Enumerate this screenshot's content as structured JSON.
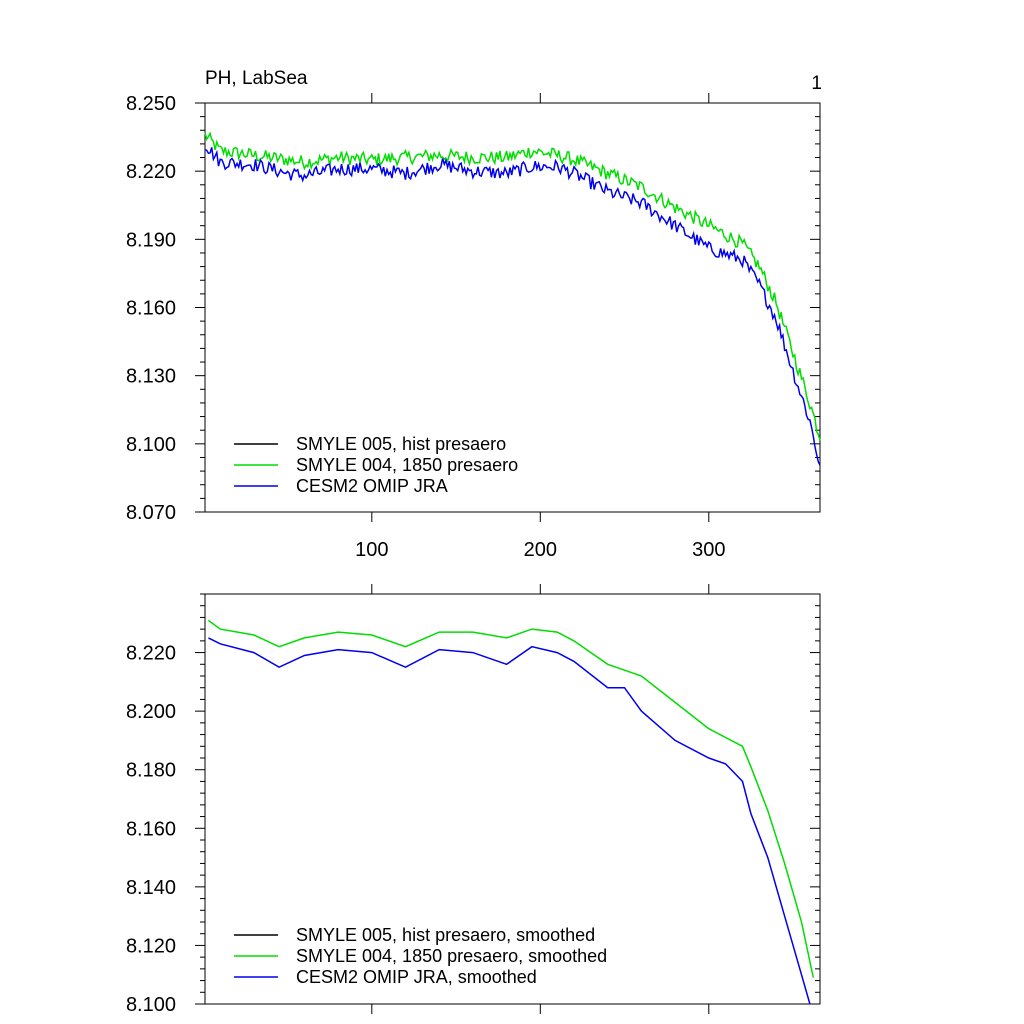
{
  "chart_data": [
    {
      "type": "line",
      "title": "PH, LabSea",
      "corner_label": "1",
      "xlim": [
        1,
        366
      ],
      "ylim": [
        8.07,
        8.25
      ],
      "xticks": [
        100,
        200,
        300
      ],
      "xtick_labels": [
        "100",
        "200",
        "300"
      ],
      "yticks": [
        8.07,
        8.1,
        8.13,
        8.16,
        8.19,
        8.22,
        8.25
      ],
      "ytick_labels": [
        "8.070",
        "8.100",
        "8.130",
        "8.160",
        "8.190",
        "8.220",
        "8.250"
      ],
      "legend_position": "bottom-left",
      "series": [
        {
          "name": "SMYLE 005, hist presaero",
          "color": "#000000",
          "x": [],
          "y": []
        },
        {
          "name": "SMYLE 004, 1850 presaero",
          "color": "#00dd00",
          "noisy": true,
          "x": [
            1,
            10,
            30,
            50,
            60,
            80,
            100,
            120,
            140,
            160,
            180,
            195,
            210,
            220,
            240,
            260,
            280,
            300,
            320,
            330,
            340,
            350,
            360,
            366
          ],
          "y": [
            8.236,
            8.229,
            8.227,
            8.225,
            8.224,
            8.226,
            8.225,
            8.226,
            8.227,
            8.226,
            8.226,
            8.229,
            8.227,
            8.225,
            8.219,
            8.213,
            8.204,
            8.196,
            8.188,
            8.178,
            8.162,
            8.14,
            8.118,
            8.103
          ]
        },
        {
          "name": "CESM2 OMIP JRA",
          "color": "#0000ee",
          "noisy": true,
          "x": [
            1,
            10,
            30,
            50,
            60,
            80,
            100,
            120,
            140,
            160,
            180,
            195,
            210,
            220,
            240,
            260,
            280,
            300,
            320,
            330,
            340,
            350,
            360,
            366
          ],
          "y": [
            8.232,
            8.224,
            8.223,
            8.219,
            8.218,
            8.221,
            8.221,
            8.219,
            8.223,
            8.22,
            8.219,
            8.222,
            8.222,
            8.219,
            8.211,
            8.206,
            8.196,
            8.186,
            8.181,
            8.17,
            8.155,
            8.132,
            8.11,
            8.09
          ]
        }
      ]
    },
    {
      "type": "line",
      "title": "",
      "xlim": [
        1,
        366
      ],
      "ylim": [
        8.1,
        8.24
      ],
      "xticks": [
        100,
        200,
        300
      ],
      "yticks": [
        8.1,
        8.12,
        8.14,
        8.16,
        8.18,
        8.2,
        8.22
      ],
      "ytick_labels": [
        "8.100",
        "8.120",
        "8.140",
        "8.160",
        "8.180",
        "8.200",
        "8.220"
      ],
      "legend_position": "bottom-left",
      "series": [
        {
          "name": "SMYLE 005, hist presaero, smoothed",
          "color": "#000000",
          "x": [],
          "y": []
        },
        {
          "name": "SMYLE 004, 1850 presaero, smoothed",
          "color": "#00dd00",
          "x": [
            3,
            10,
            30,
            45,
            60,
            80,
            100,
            120,
            140,
            160,
            180,
            195,
            210,
            220,
            240,
            260,
            280,
            300,
            310,
            320,
            325,
            335,
            345,
            355,
            362
          ],
          "y": [
            8.231,
            8.228,
            8.226,
            8.222,
            8.225,
            8.227,
            8.226,
            8.222,
            8.227,
            8.227,
            8.225,
            8.228,
            8.227,
            8.224,
            8.216,
            8.212,
            8.203,
            8.194,
            8.191,
            8.188,
            8.181,
            8.166,
            8.148,
            8.128,
            8.109
          ]
        },
        {
          "name": "CESM2 OMIP JRA, smoothed",
          "color": "#0000ee",
          "x": [
            3,
            10,
            30,
            45,
            60,
            80,
            100,
            120,
            140,
            160,
            180,
            195,
            210,
            220,
            240,
            250,
            260,
            280,
            300,
            310,
            320,
            325,
            335,
            345,
            355,
            360
          ],
          "y": [
            8.225,
            8.223,
            8.22,
            8.215,
            8.219,
            8.221,
            8.22,
            8.215,
            8.221,
            8.22,
            8.216,
            8.222,
            8.22,
            8.217,
            8.208,
            8.208,
            8.2,
            8.19,
            8.184,
            8.182,
            8.176,
            8.165,
            8.15,
            8.13,
            8.11,
            8.1
          ]
        }
      ]
    }
  ]
}
